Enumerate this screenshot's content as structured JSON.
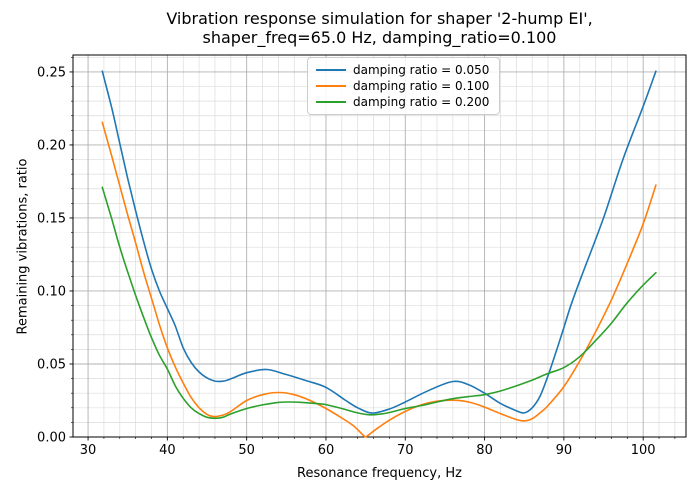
{
  "figure": {
    "title": "Vibration response simulation for shaper '2-hump EI',\nshaper_freq=65.0 Hz, damping_ratio=0.100"
  },
  "chart_data": {
    "type": "line",
    "title": "Vibration response simulation for shaper '2-hump EI', shaper_freq=65.0 Hz, damping_ratio=0.100",
    "xlabel": "Resonance frequency, Hz",
    "ylabel": "Remaining vibrations, ratio",
    "xlim": [
      28.1,
      105.4
    ],
    "ylim": [
      0,
      0.2616
    ],
    "grid": "major+minor",
    "legend_position": "upper center",
    "x_ticks": {
      "values": [
        30,
        40,
        50,
        60,
        70,
        80,
        90,
        100
      ],
      "labels": [
        "30",
        "40",
        "50",
        "60",
        "70",
        "80",
        "90",
        "100"
      ]
    },
    "y_ticks": {
      "values": [
        0,
        0.05,
        0.1,
        0.15,
        0.2,
        0.25
      ],
      "labels": [
        "0.00",
        "0.05",
        "0.10",
        "0.15",
        "0.20",
        "0.25"
      ]
    },
    "x_minor_step": 2,
    "y_minor_step": 0.01,
    "colors": {
      "grid_major": "#b0b0b0",
      "grid_minor": "#dcdcdc",
      "spine": "#000000"
    },
    "series": [
      {
        "name": "damping ratio = 0.050",
        "color": "#1f77b4",
        "points": [
          [
            31.8,
            0.2505
          ],
          [
            33,
            0.225
          ],
          [
            34,
            0.201
          ],
          [
            35,
            0.177
          ],
          [
            36,
            0.155
          ],
          [
            37,
            0.134
          ],
          [
            38,
            0.115
          ],
          [
            39,
            0.1
          ],
          [
            40,
            0.088
          ],
          [
            41,
            0.076
          ],
          [
            42,
            0.061
          ],
          [
            43,
            0.051
          ],
          [
            44,
            0.0445
          ],
          [
            45,
            0.0405
          ],
          [
            46,
            0.0383
          ],
          [
            47,
            0.0382
          ],
          [
            48,
            0.0398
          ],
          [
            50,
            0.044
          ],
          [
            52.5,
            0.0462
          ],
          [
            55,
            0.0428
          ],
          [
            57.5,
            0.0386
          ],
          [
            60,
            0.034
          ],
          [
            62.5,
            0.025
          ],
          [
            64,
            0.02
          ],
          [
            65.8,
            0.0164
          ],
          [
            68,
            0.0192
          ],
          [
            70,
            0.024
          ],
          [
            73,
            0.032
          ],
          [
            76,
            0.038
          ],
          [
            78,
            0.0358
          ],
          [
            80,
            0.03
          ],
          [
            82,
            0.023
          ],
          [
            84,
            0.018
          ],
          [
            85,
            0.0165
          ],
          [
            86,
            0.02
          ],
          [
            87,
            0.028
          ],
          [
            88,
            0.042
          ],
          [
            89,
            0.058
          ],
          [
            90,
            0.075
          ],
          [
            91,
            0.092
          ],
          [
            92.5,
            0.114
          ],
          [
            95,
            0.15
          ],
          [
            97.5,
            0.191
          ],
          [
            100,
            0.2265
          ],
          [
            101.6,
            0.2505
          ]
        ]
      },
      {
        "name": "damping ratio = 0.100",
        "color": "#ff7f0e",
        "points": [
          [
            31.8,
            0.2155
          ],
          [
            33,
            0.192
          ],
          [
            34,
            0.172
          ],
          [
            35,
            0.152
          ],
          [
            36,
            0.133
          ],
          [
            37,
            0.113
          ],
          [
            38,
            0.095
          ],
          [
            39,
            0.077
          ],
          [
            40,
            0.061
          ],
          [
            41,
            0.048
          ],
          [
            42,
            0.037
          ],
          [
            43,
            0.027
          ],
          [
            44,
            0.02
          ],
          [
            45,
            0.0155
          ],
          [
            45.8,
            0.014
          ],
          [
            47,
            0.015
          ],
          [
            48,
            0.0175
          ],
          [
            50,
            0.025
          ],
          [
            52,
            0.029
          ],
          [
            54,
            0.0305
          ],
          [
            56,
            0.029
          ],
          [
            58,
            0.025
          ],
          [
            60,
            0.0195
          ],
          [
            62,
            0.013
          ],
          [
            63.5,
            0.0075
          ],
          [
            64.7,
            0.0012
          ],
          [
            65,
            0.0
          ],
          [
            65.3,
            0.0011
          ],
          [
            66.5,
            0.006
          ],
          [
            68,
            0.0115
          ],
          [
            70,
            0.0175
          ],
          [
            72,
            0.022
          ],
          [
            74,
            0.0245
          ],
          [
            76,
            0.0252
          ],
          [
            78,
            0.024
          ],
          [
            80,
            0.0205
          ],
          [
            82,
            0.016
          ],
          [
            84,
            0.012
          ],
          [
            85,
            0.011
          ],
          [
            86,
            0.0125
          ],
          [
            87,
            0.0165
          ],
          [
            88,
            0.0215
          ],
          [
            90,
            0.0345
          ],
          [
            92,
            0.052
          ],
          [
            94,
            0.072
          ],
          [
            96,
            0.094
          ],
          [
            98,
            0.119
          ],
          [
            100,
            0.146
          ],
          [
            101.6,
            0.1725
          ]
        ]
      },
      {
        "name": "damping ratio = 0.200",
        "color": "#2ca02c",
        "points": [
          [
            31.8,
            0.171
          ],
          [
            33,
            0.149
          ],
          [
            34,
            0.13
          ],
          [
            35,
            0.113
          ],
          [
            36,
            0.097
          ],
          [
            37,
            0.082
          ],
          [
            38,
            0.068
          ],
          [
            39,
            0.056
          ],
          [
            40,
            0.0465
          ],
          [
            41,
            0.035
          ],
          [
            42,
            0.0265
          ],
          [
            43,
            0.02
          ],
          [
            44,
            0.016
          ],
          [
            45,
            0.0135
          ],
          [
            46,
            0.0128
          ],
          [
            47,
            0.0135
          ],
          [
            48,
            0.0158
          ],
          [
            50,
            0.0195
          ],
          [
            52,
            0.022
          ],
          [
            54,
            0.0237
          ],
          [
            55.5,
            0.024
          ],
          [
            57,
            0.0237
          ],
          [
            59,
            0.0228
          ],
          [
            60,
            0.0222
          ],
          [
            62,
            0.0195
          ],
          [
            64,
            0.0165
          ],
          [
            65.5,
            0.0152
          ],
          [
            67,
            0.0158
          ],
          [
            68,
            0.0168
          ],
          [
            70,
            0.0195
          ],
          [
            72,
            0.0215
          ],
          [
            74,
            0.024
          ],
          [
            76,
            0.0262
          ],
          [
            78,
            0.0277
          ],
          [
            80,
            0.029
          ],
          [
            82,
            0.0315
          ],
          [
            84,
            0.035
          ],
          [
            86,
            0.039
          ],
          [
            88,
            0.0435
          ],
          [
            90,
            0.0475
          ],
          [
            92,
            0.055
          ],
          [
            94,
            0.066
          ],
          [
            96,
            0.078
          ],
          [
            98,
            0.092
          ],
          [
            100,
            0.104
          ],
          [
            101.6,
            0.1125
          ]
        ]
      }
    ]
  }
}
